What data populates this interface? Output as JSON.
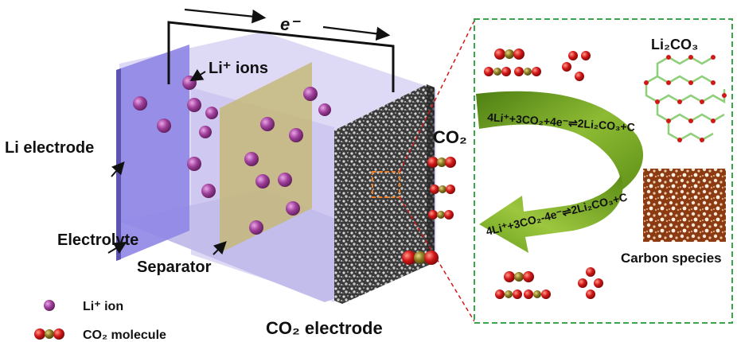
{
  "cell": {
    "electron_label": "e⁻",
    "li_ions_label": "Li⁺ ions",
    "li_electrode_label": "Li electrode",
    "electrolyte_label": "Electrolyte",
    "separator_label": "Separator",
    "co2_label": "CO₂",
    "co2_electrode_label": "CO₂ electrode"
  },
  "legend": {
    "li_ion": "Li⁺ ion",
    "co2_molecule": "CO₂ molecule"
  },
  "inset": {
    "li2co3_label": "Li₂CO₃",
    "discharge_equation": "4Li⁺+3CO₂+4e⁻⇌2Li₂CO₃+C",
    "charge_equation": "4Li⁺+3CO₂-4e⁻⇌2Li₂CO₃+C",
    "carbon_label": "Carbon species"
  },
  "colors": {
    "electrolyte": "#c9c3ec",
    "li_panel": "#8f86e6",
    "separator": "#c6b87a",
    "li_ion": "#a0409c",
    "oxygen": "#d21818",
    "carbon_atom": "#8a7a20",
    "arrow_green": "#6a9a1e",
    "dashed_green": "#3aa54a"
  }
}
